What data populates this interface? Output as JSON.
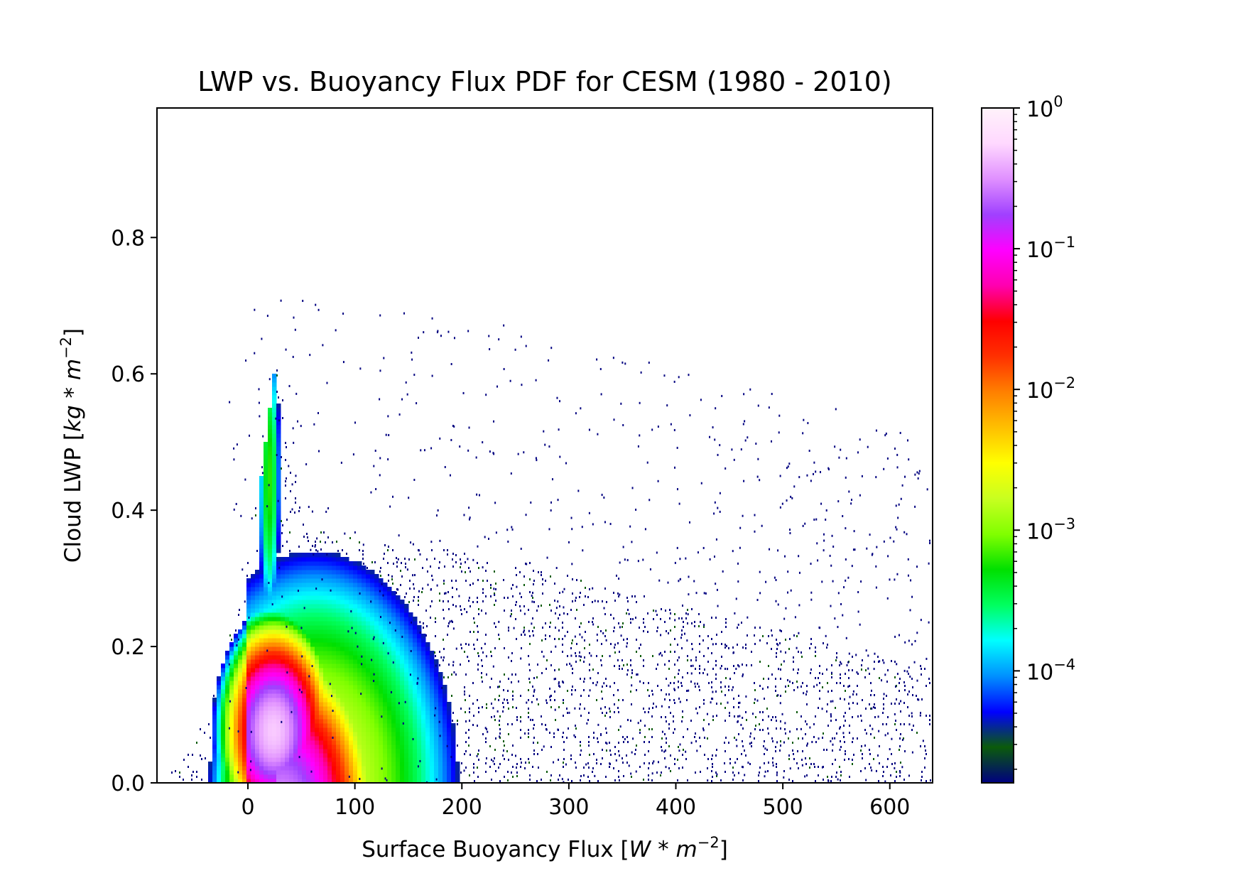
{
  "chart_data": {
    "type": "heatmap",
    "title": "LWP vs. Buoyancy Flux PDF for CESM (1980 - 2010)",
    "xlabel": {
      "text": "Surface Buoyancy Flux [",
      "math": "W * m",
      "exp": "−2",
      "close": "]"
    },
    "ylabel": {
      "text": "Cloud LWP [",
      "math": "kg * m",
      "exp": "−2",
      "close": "]"
    },
    "xlim": [
      -85,
      640
    ],
    "ylim": [
      0,
      0.99
    ],
    "xticks": [
      0,
      100,
      200,
      300,
      400,
      500,
      600
    ],
    "xtick_labels": [
      "0",
      "100",
      "200",
      "300",
      "400",
      "500",
      "600"
    ],
    "yticks": [
      0.0,
      0.2,
      0.4,
      0.6,
      0.8
    ],
    "ytick_labels": [
      "0.0",
      "0.2",
      "0.4",
      "0.6",
      "0.8"
    ],
    "colorbar": {
      "scale": "log",
      "range": [
        1.6e-05,
        1.0
      ],
      "colormap": "gist_ncar",
      "tick_base": "10",
      "ticks": [
        {
          "value": 1.0,
          "exp": "0"
        },
        {
          "value": 0.1,
          "exp": "−1"
        },
        {
          "value": 0.01,
          "exp": "−2"
        },
        {
          "value": 0.001,
          "exp": "−3"
        },
        {
          "value": 0.0001,
          "exp": "−4"
        }
      ],
      "colors": [
        "#000080",
        "#0b5b0b",
        "#0000ff",
        "#0090ff",
        "#00ffff",
        "#00ff60",
        "#00e000",
        "#80ff00",
        "#c8ff20",
        "#ffff00",
        "#ffc000",
        "#ff8000",
        "#ff3000",
        "#ff0000",
        "#ff00b0",
        "#ff00ff",
        "#a040ff",
        "#e090ff",
        "#ffd8ff",
        "#fff2fa"
      ]
    },
    "density_model": {
      "description_free": true,
      "envelope_x": [
        -85,
        -60,
        -40,
        -20,
        -5,
        5,
        15,
        25,
        35,
        50,
        80,
        120,
        150,
        180,
        220,
        260,
        300,
        350,
        400,
        450,
        500,
        550,
        600,
        640
      ],
      "envelope_y": [
        0.005,
        0.05,
        0.1,
        0.2,
        0.3,
        0.38,
        0.5,
        0.62,
        0.5,
        0.38,
        0.36,
        0.35,
        0.34,
        0.34,
        0.33,
        0.32,
        0.3,
        0.28,
        0.26,
        0.24,
        0.22,
        0.2,
        0.18,
        0.17
      ],
      "peak_x": 22,
      "peak_y": 0.08
    }
  }
}
